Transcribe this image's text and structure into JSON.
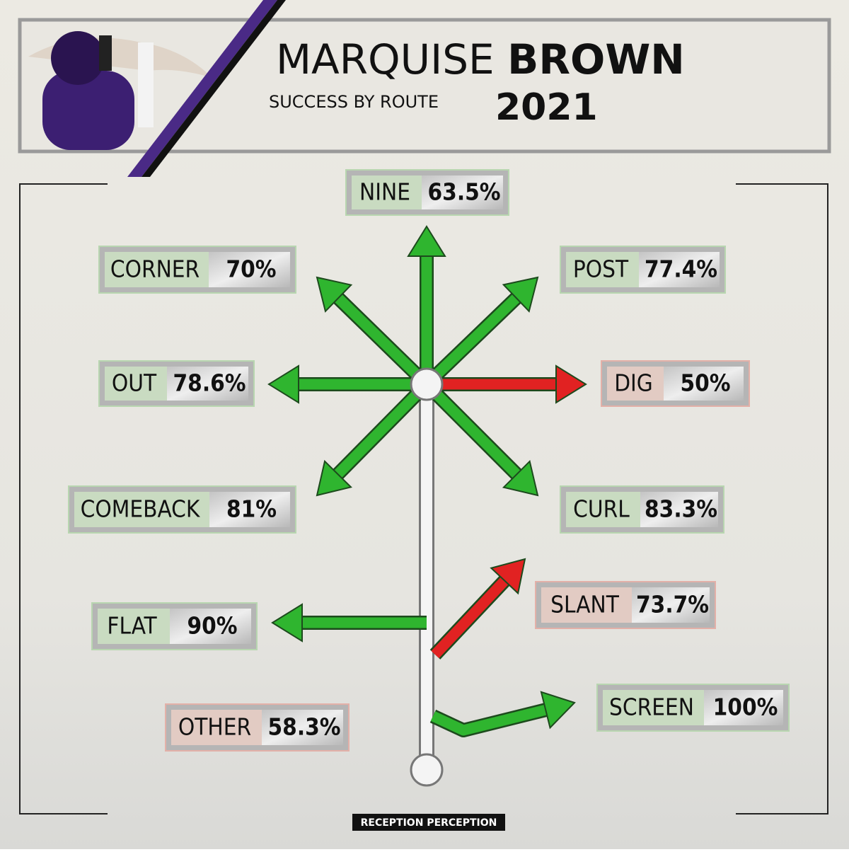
{
  "header": {
    "name_first": "MARQUISE",
    "name_last": "BROWN",
    "subtitle": "SUCCESS BY ROUTE",
    "year": "2021"
  },
  "routes": [
    {
      "name": "NINE",
      "value": "63.5%",
      "color": "#2fb52f"
    },
    {
      "name": "CORNER",
      "value": "70%",
      "color": "#2fb52f"
    },
    {
      "name": "POST",
      "value": "77.4%",
      "color": "#2fb52f"
    },
    {
      "name": "OUT",
      "value": "78.6%",
      "color": "#2fb52f"
    },
    {
      "name": "DIG",
      "value": "50%",
      "color": "#e12222"
    },
    {
      "name": "COMEBACK",
      "value": "81%",
      "color": "#2fb52f"
    },
    {
      "name": "CURL",
      "value": "83.3%",
      "color": "#2fb52f"
    },
    {
      "name": "FLAT",
      "value": "90%",
      "color": "#2fb52f"
    },
    {
      "name": "SLANT",
      "value": "73.7%",
      "color": "#e12222"
    },
    {
      "name": "OTHER",
      "value": "58.3%",
      "color": "#e12222"
    },
    {
      "name": "SCREEN",
      "value": "100%",
      "color": "#2fb52f"
    }
  ],
  "footer": "RECEPTION PERCEPTION"
}
